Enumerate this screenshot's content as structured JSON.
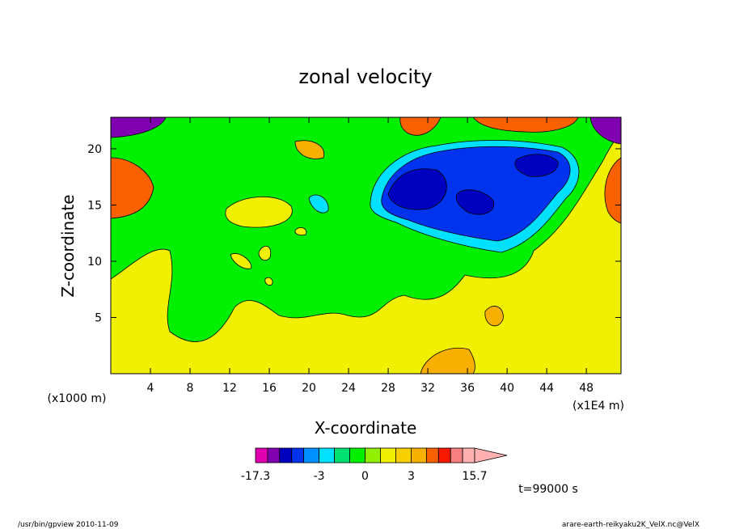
{
  "chart_data": {
    "type": "heatmap",
    "title": "zonal velocity",
    "xlabel": "X-coordinate",
    "ylabel": "Z-coordinate",
    "x_unit": "(x1E4 m)",
    "y_unit": "(x1000 m)",
    "xlim": [
      0,
      51.5
    ],
    "ylim": [
      0,
      22.8
    ],
    "x_ticks": [
      "4",
      "8",
      "12",
      "16",
      "20",
      "24",
      "28",
      "32",
      "36",
      "40",
      "44",
      "48"
    ],
    "y_ticks": [
      "5",
      "10",
      "15",
      "20"
    ],
    "time_label": "t=99000 s",
    "colorbar": {
      "min_label": "-17.3",
      "max_label": "15.7",
      "tick_labels": [
        "-3",
        "0",
        "3"
      ],
      "levels": [
        -17.3,
        -13.6,
        -9.9,
        -6.2,
        -4.5,
        -3,
        -2,
        -1,
        0,
        1,
        2,
        3,
        4.5,
        6.2,
        9.9,
        13.6,
        15.7
      ],
      "colors": [
        "#e000b0",
        "#8000b0",
        "#0000c0",
        "#0033ee",
        "#0090ff",
        "#00e0ff",
        "#00e070",
        "#00f000",
        "#90f000",
        "#f0f000",
        "#f8d000",
        "#f8b000",
        "#f86000",
        "#f81800",
        "#f88080",
        "#ffb0b0"
      ]
    }
  },
  "footer": {
    "left": "/usr/bin/gpview   2010-11-09",
    "right": "arare-earth-reikyaku2K_VelX.nc@VelX"
  }
}
